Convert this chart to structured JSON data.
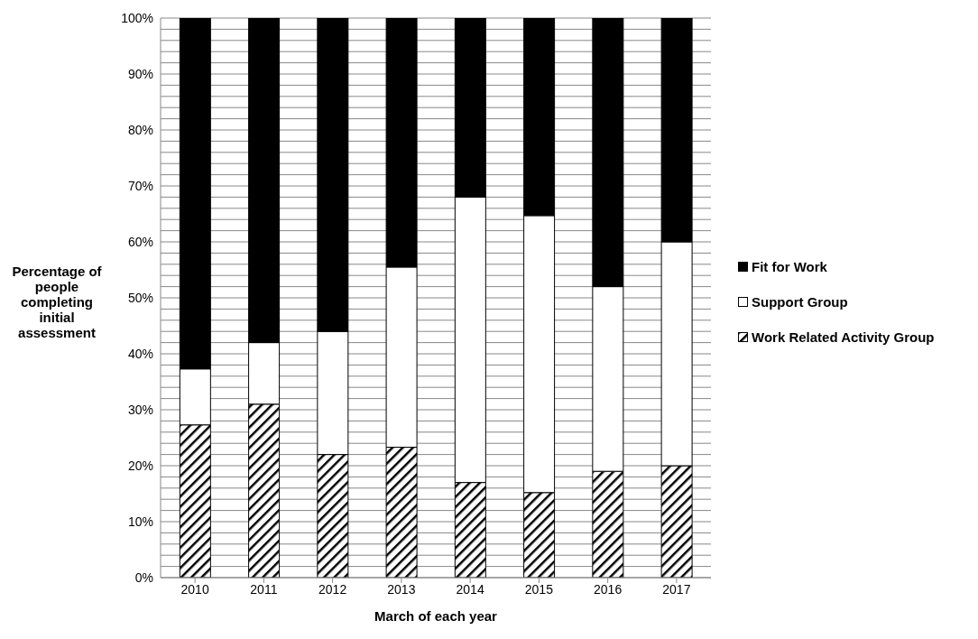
{
  "chart_data": {
    "type": "bar",
    "stacked": true,
    "xlabel": "March of each year",
    "ylabel": "Percentage of people completing initial assessment",
    "categories": [
      "2010",
      "2011",
      "2012",
      "2013",
      "2014",
      "2015",
      "2016",
      "2017"
    ],
    "series": [
      {
        "name": "Work Related Activity Group",
        "color": "#000000",
        "values": [
          27.3,
          31,
          22,
          23.3,
          17,
          15.2,
          19,
          20
        ]
      },
      {
        "name": "Support Group",
        "color": "#ffffff",
        "values": [
          10,
          11,
          22,
          32.2,
          51,
          49.5,
          33,
          40
        ]
      },
      {
        "name": "Fit for Work",
        "color": "#000000",
        "values": [
          62.7,
          58,
          56,
          44.5,
          32,
          35.3,
          48,
          40
        ]
      }
    ],
    "ylim": [
      0,
      100
    ],
    "yticks": [
      {
        "value": 0,
        "label": "0%"
      },
      {
        "value": 2,
        "label": null
      },
      {
        "value": 4,
        "label": null
      },
      {
        "value": 6,
        "label": null
      },
      {
        "value": 8,
        "label": null
      },
      {
        "value": 10,
        "label": "10%"
      },
      {
        "value": 12,
        "label": null
      },
      {
        "value": 14,
        "label": null
      },
      {
        "value": 16,
        "label": null
      },
      {
        "value": 18,
        "label": null
      },
      {
        "value": 20,
        "label": "20%"
      },
      {
        "value": 22,
        "label": null
      },
      {
        "value": 24,
        "label": null
      },
      {
        "value": 26,
        "label": null
      },
      {
        "value": 28,
        "label": null
      },
      {
        "value": 30,
        "label": "30%"
      },
      {
        "value": 32,
        "label": null
      },
      {
        "value": 34,
        "label": null
      },
      {
        "value": 36,
        "label": null
      },
      {
        "value": 38,
        "label": null
      },
      {
        "value": 40,
        "label": "40%"
      },
      {
        "value": 42,
        "label": null
      },
      {
        "value": 44,
        "label": null
      },
      {
        "value": 46,
        "label": null
      },
      {
        "value": 48,
        "label": null
      },
      {
        "value": 50,
        "label": "50%"
      },
      {
        "value": 52,
        "label": null
      },
      {
        "value": 54,
        "label": null
      },
      {
        "value": 56,
        "label": null
      },
      {
        "value": 58,
        "label": null
      },
      {
        "value": 60,
        "label": "60%"
      },
      {
        "value": 62,
        "label": null
      },
      {
        "value": 64,
        "label": null
      },
      {
        "value": 66,
        "label": null
      },
      {
        "value": 68,
        "label": null
      },
      {
        "value": 70,
        "label": "70%"
      },
      {
        "value": 72,
        "label": null
      },
      {
        "value": 74,
        "label": null
      },
      {
        "value": 76,
        "label": null
      },
      {
        "value": 78,
        "label": null
      },
      {
        "value": 80,
        "label": "80%"
      },
      {
        "value": 82,
        "label": null
      },
      {
        "value": 84,
        "label": null
      },
      {
        "value": 86,
        "label": null
      },
      {
        "value": 88,
        "label": null
      },
      {
        "value": 90,
        "label": "90%"
      },
      {
        "value": 92,
        "label": null
      },
      {
        "value": 94,
        "label": null
      },
      {
        "value": 96,
        "label": null
      },
      {
        "value": 98,
        "label": null
      },
      {
        "value": 100,
        "label": "100%"
      }
    ],
    "grid": "y",
    "legend": "right"
  }
}
